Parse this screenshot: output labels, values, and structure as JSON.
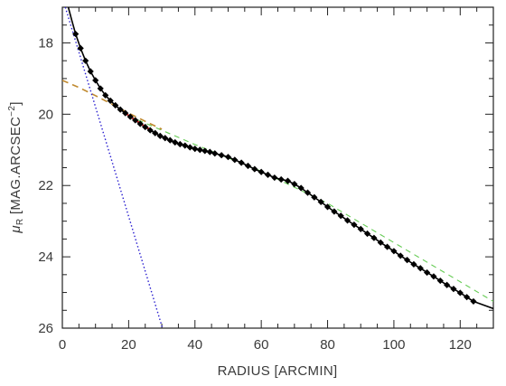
{
  "chart_data": {
    "type": "line",
    "xlabel": "RADIUS [ARCMIN]",
    "ylabel_main": "μ",
    "ylabel_sub": "R",
    "ylabel_rest": " [MAG.ARCSEC",
    "ylabel_sup": "−2",
    "ylabel_close": "]",
    "xlim": [
      0,
      130
    ],
    "ylim": [
      26,
      17
    ],
    "y_inverted": true,
    "grid": false,
    "xticks": [
      0,
      20,
      40,
      60,
      80,
      100,
      120
    ],
    "yticks": [
      18,
      20,
      22,
      24,
      26
    ],
    "series": [
      {
        "style": "black-line-diamond-markers",
        "color": "#000000",
        "x": [
          4.0,
          5.5,
          7.0,
          8.5,
          10.0,
          11.5,
          13.0,
          14.5,
          16.0,
          17.5,
          19.0,
          20.5,
          22.0,
          23.5,
          25.0,
          26.5,
          28.0,
          29.5,
          31.0,
          32.5,
          34.0,
          35.5,
          37.0,
          38.5,
          40.0,
          41.5,
          43.0,
          44.5,
          46.0,
          48.0,
          50.0,
          52.0,
          54.0,
          56.0,
          58.0,
          60.0,
          62.0,
          64.0,
          66.0,
          68.0,
          70.0,
          72.0,
          74.0,
          76.0,
          78.0,
          80.0,
          82.0,
          84.0,
          86.0,
          88.0,
          90.0,
          92.0,
          94.0,
          96.0,
          98.0,
          100.0,
          102.0,
          104.0,
          106.0,
          108.0,
          110.0,
          112.0,
          114.0,
          116.0,
          118.0,
          120.0,
          122.0,
          124.0
        ],
        "y": [
          17.75,
          18.15,
          18.5,
          18.8,
          19.05,
          19.28,
          19.47,
          19.62,
          19.75,
          19.87,
          19.97,
          20.07,
          20.17,
          20.27,
          20.36,
          20.45,
          20.53,
          20.61,
          20.67,
          20.73,
          20.79,
          20.84,
          20.88,
          20.93,
          20.97,
          21.0,
          21.03,
          21.06,
          21.1,
          21.15,
          21.2,
          21.28,
          21.36,
          21.45,
          21.54,
          21.62,
          21.7,
          21.78,
          21.83,
          21.87,
          21.96,
          22.07,
          22.2,
          22.33,
          22.46,
          22.6,
          22.73,
          22.85,
          22.98,
          23.1,
          23.22,
          23.35,
          23.47,
          23.6,
          23.72,
          23.84,
          23.97,
          24.09,
          24.21,
          24.32,
          24.44,
          24.55,
          24.67,
          24.79,
          24.9,
          25.01,
          25.13,
          25.25
        ]
      },
      {
        "style": "blue-dotted",
        "color": "#2a1fd0",
        "x": [
          0.9,
          30.2
        ],
        "y": [
          17.0,
          26.0
        ]
      },
      {
        "style": "orange-dashed",
        "color": "#c08a30",
        "x": [
          0.0,
          5.0,
          10.0,
          15.0,
          20.0,
          25.0,
          30.0
        ],
        "y": [
          19.05,
          19.25,
          19.48,
          19.72,
          19.97,
          20.2,
          20.42
        ]
      },
      {
        "style": "green-dashed",
        "color": "#66cc55",
        "x": [
          20.0,
          40.0,
          60.0,
          80.0,
          100.0,
          120.0,
          130.0
        ],
        "y": [
          20.05,
          20.85,
          21.6,
          22.5,
          23.6,
          24.7,
          25.25
        ]
      },
      {
        "style": "red-segment",
        "color": "#d02020",
        "x": [
          19.0,
          21.0,
          23.0,
          25.0,
          27.0
        ],
        "y": [
          19.97,
          20.1,
          20.22,
          20.35,
          20.45
        ]
      }
    ]
  }
}
